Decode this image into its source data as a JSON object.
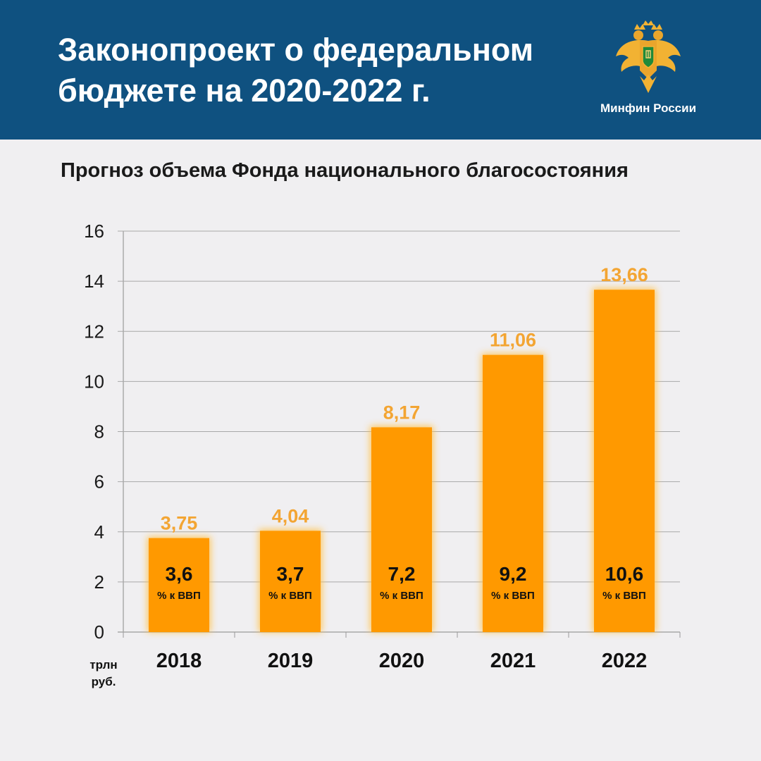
{
  "header": {
    "title_lines": [
      "Законопроект о федеральном",
      "бюджете на 2020-2022 г."
    ],
    "brand": "Минфин России",
    "emblem_icon": "double-headed-eagle-icon"
  },
  "colors": {
    "header_bg": "#0f5180",
    "bar": "#ff9900",
    "value_label": "#f3a533",
    "background": "#f0eff1"
  },
  "chart_data": {
    "type": "bar",
    "title": "Прогноз объема Фонда национального благосостояния",
    "categories": [
      "2018",
      "2019",
      "2020",
      "2021",
      "2022"
    ],
    "values": [
      3.75,
      4.04,
      8.17,
      11.06,
      13.66
    ],
    "value_labels": [
      "3,75",
      "4,04",
      "8,17",
      "11,06",
      "13,66"
    ],
    "inner_labels": [
      "3,6",
      "3,7",
      "7,2",
      "9,2",
      "10,6"
    ],
    "inner_sublabel": "% к ВВП",
    "unit_label": [
      "трлн",
      "руб."
    ],
    "ylim": [
      0,
      16
    ],
    "yticks": [
      0,
      2,
      4,
      6,
      8,
      10,
      12,
      14,
      16
    ],
    "grid": true,
    "legend": "none"
  }
}
